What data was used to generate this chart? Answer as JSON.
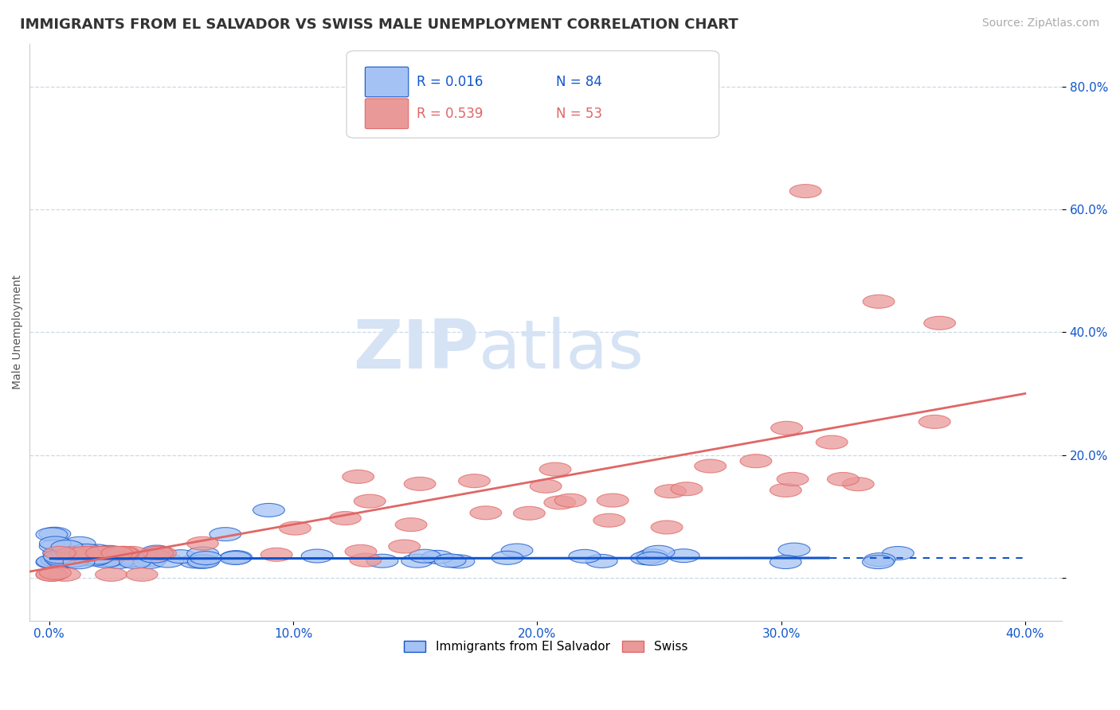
{
  "title": "IMMIGRANTS FROM EL SALVADOR VS SWISS MALE UNEMPLOYMENT CORRELATION CHART",
  "source": "Source: ZipAtlas.com",
  "ylabel": "Male Unemployment",
  "color_blue": "#a4c2f4",
  "color_pink": "#ea9999",
  "color_blue_dark": "#1155cc",
  "color_pink_dark": "#e06666",
  "color_line_blue": "#1155cc",
  "color_line_pink": "#e06666",
  "watermark_color": "#d6e3f5",
  "grid_color": "#c9d9ea",
  "background_color": "#ffffff",
  "title_fontsize": 13,
  "axis_label_fontsize": 10,
  "tick_fontsize": 11,
  "legend_fontsize": 12,
  "source_fontsize": 10
}
